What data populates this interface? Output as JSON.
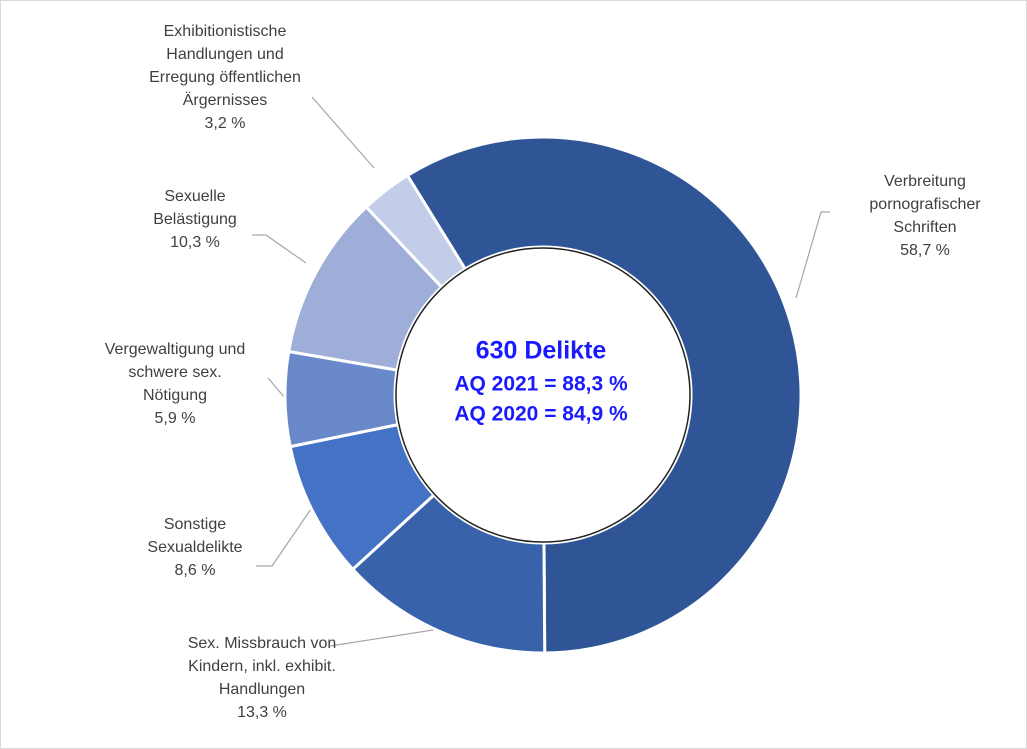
{
  "chart_data": {
    "type": "donut",
    "categories": [
      "Verbreitung pornografischer Schriften",
      "Sex. Missbrauch von Kindern, inkl. exhibit. Handlungen",
      "Sonstige Sexualdelikte",
      "Vergewaltigung und schwere sex. Nötigung",
      "Sexuelle Belästigung",
      "Exhibitionistische Handlungen und Erregung öffentlichen Ärgernisses"
    ],
    "values": [
      58.7,
      13.3,
      8.6,
      5.9,
      10.3,
      3.2
    ],
    "value_labels": [
      "58,7 %",
      "13,3 %",
      "8,6 %",
      "5,9 %",
      "10,3 %",
      "3,2 %"
    ],
    "colors": [
      "#2f5597",
      "#3862a9",
      "#4472c4",
      "#6a89cb",
      "#9eaed8",
      "#c3cce8"
    ],
    "center_text": [
      "630 Delikte",
      "AQ 2021 = 88,3 %",
      "AQ 2020 = 84,9 %"
    ]
  }
}
